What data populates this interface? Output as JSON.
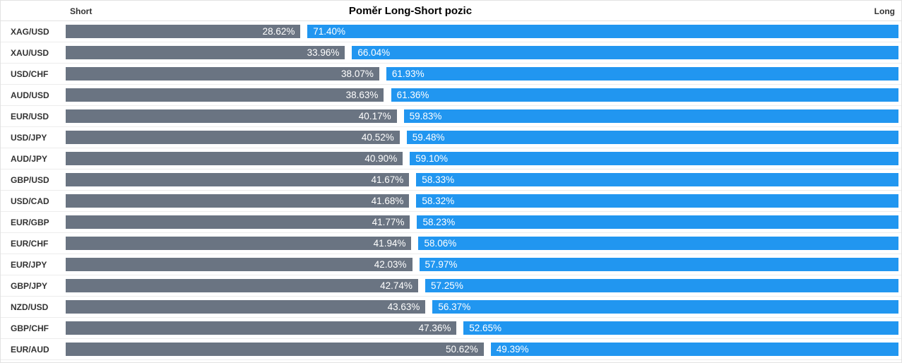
{
  "chart_data": {
    "type": "bar",
    "orientation": "horizontal-diverging-stacked",
    "title": "Poměr Long-Short pozic",
    "xlim": [
      0,
      100
    ],
    "value_labels": "percent with 2 decimals, shown inside bars",
    "legend_position": "top (Short left, Long right)",
    "grid": false,
    "categories": [
      "XAG/USD",
      "XAU/USD",
      "USD/CHF",
      "AUD/USD",
      "EUR/USD",
      "USD/JPY",
      "AUD/JPY",
      "GBP/USD",
      "USD/CAD",
      "EUR/GBP",
      "EUR/CHF",
      "EUR/JPY",
      "GBP/JPY",
      "NZD/USD",
      "GBP/CHF",
      "EUR/AUD"
    ],
    "series": [
      {
        "name": "Short",
        "color": "#6A7482",
        "values": [
          28.62,
          33.96,
          38.07,
          38.63,
          40.17,
          40.52,
          40.9,
          41.67,
          41.68,
          41.77,
          41.94,
          42.03,
          42.74,
          43.63,
          47.36,
          50.62
        ]
      },
      {
        "name": "Long",
        "color": "#2196F0",
        "values": [
          71.4,
          66.04,
          61.93,
          61.36,
          59.83,
          59.48,
          59.1,
          58.33,
          58.32,
          58.23,
          58.06,
          57.97,
          57.25,
          56.37,
          52.65,
          49.39
        ]
      }
    ]
  }
}
